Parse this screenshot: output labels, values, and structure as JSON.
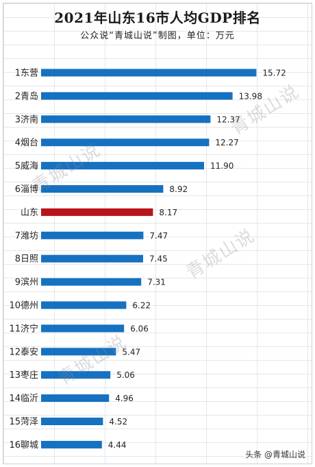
{
  "chart_data": {
    "type": "bar",
    "orientation": "horizontal",
    "title": "2021年山东16市人均GDP排名",
    "subtitle": "公众说“青城山说”制图，单位：万元",
    "categories": [
      "1东营",
      "2青岛",
      "3济南",
      "4烟台",
      "5威海",
      "6淄博",
      "山东",
      "7潍坊",
      "8日照",
      "9滨州",
      "10德州",
      "11济宁",
      "12泰安",
      "13枣庄",
      "14临沂",
      "15菏泽",
      "16聊城"
    ],
    "values": [
      15.72,
      13.98,
      12.37,
      12.27,
      11.9,
      8.92,
      8.17,
      7.47,
      7.45,
      7.31,
      6.22,
      6.06,
      5.47,
      5.06,
      4.96,
      4.52,
      4.44
    ],
    "value_labels": [
      "15.72",
      "13.98",
      "12.37",
      "12.27",
      "11.90",
      "8.92",
      "8.17",
      "7.47",
      "7.45",
      "7.31",
      "6.22",
      "6.06",
      "5.47",
      "5.06",
      "4.96",
      "4.52",
      "4.44"
    ],
    "highlight_category": "山东",
    "xlim": [
      0,
      18
    ],
    "grid": true,
    "legend": "none",
    "colors": {
      "bar": "#1671c0",
      "highlight": "#b8141b"
    }
  },
  "watermark": {
    "text": "青城山说"
  },
  "credit": "头条 @青城山说"
}
